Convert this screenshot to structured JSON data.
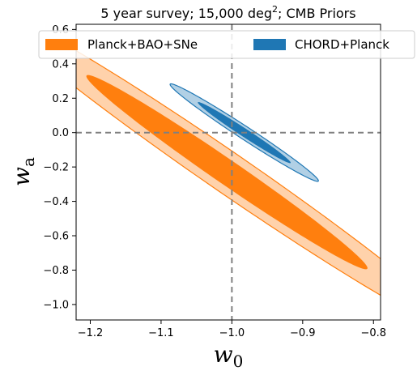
{
  "chart_data": {
    "type": "contour",
    "title_main": "5 year survey; 15,000 deg",
    "title_sup": "2",
    "title_tail": "; CMB Priors",
    "xlabel_main": "w",
    "xlabel_sub": "0",
    "ylabel_main": "w",
    "ylabel_sub": "a",
    "xlim": [
      -1.22,
      -0.79
    ],
    "ylim": [
      -1.09,
      0.63
    ],
    "xticks": [
      -1.2,
      -1.1,
      -1.0,
      -0.9,
      -0.8
    ],
    "xtick_labels": [
      "−1.2",
      "−1.1",
      "−1.0",
      "−0.9",
      "−0.8"
    ],
    "yticks": [
      -1.0,
      -0.8,
      -0.6,
      -0.4,
      -0.2,
      0.0,
      0.2,
      0.4,
      0.6
    ],
    "ytick_labels": [
      "−1.0",
      "−0.8",
      "−0.6",
      "−0.4",
      "−0.2",
      "0.0",
      "0.2",
      "0.4",
      "0.6"
    ],
    "reference_lines": {
      "x": -1.0,
      "y": 0.0
    },
    "legend_placement": "top",
    "series": [
      {
        "name": "Planck+BAO+SNe",
        "color": "#ff7f0e",
        "center": [
          -1.007,
          -0.23
        ],
        "contours": [
          {
            "level": "outer",
            "a": 0.98,
            "b": 0.0474,
            "angle_deg": -70.8
          },
          {
            "level": "inner",
            "a": 0.598,
            "b": 0.0288,
            "angle_deg": -70.8
          }
        ]
      },
      {
        "name": "CHORD+Planck",
        "color": "#1f77b4",
        "center": [
          -0.9825,
          0.0
        ],
        "contours": [
          {
            "level": "outer",
            "a": 0.302,
            "b": 0.0153,
            "angle_deg": -69.9
          },
          {
            "level": "inner",
            "a": 0.189,
            "b": 0.0099,
            "angle_deg": -69.9
          }
        ]
      }
    ]
  }
}
